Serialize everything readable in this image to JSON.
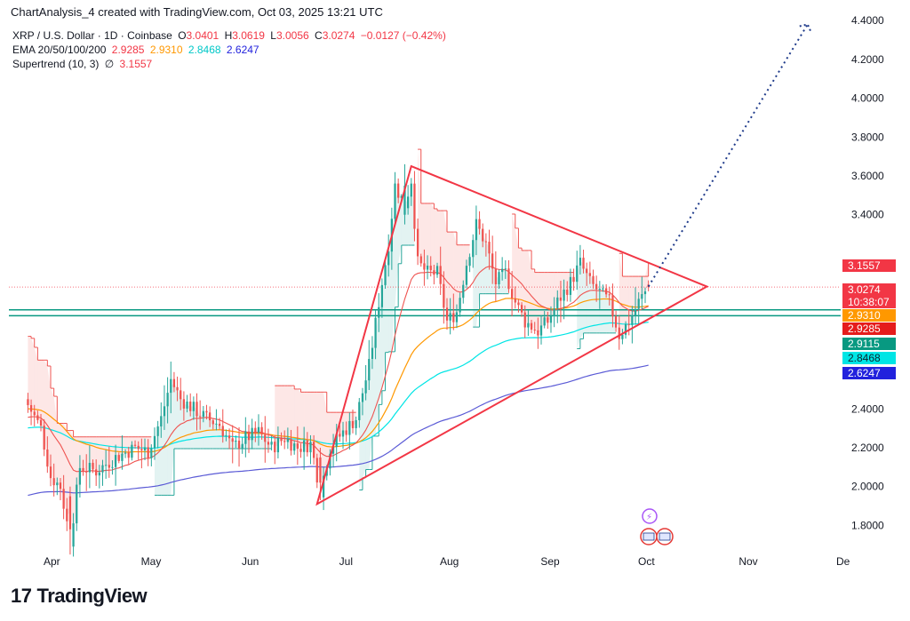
{
  "header": {
    "credit": "ChartAnalysis_4 created with TradingView.com, Oct 03, 2025 13:21 UTC"
  },
  "legend": {
    "symbol": "XRP / U.S. Dollar · 1D · Coinbase",
    "o_label": "O",
    "o_val": "3.0401",
    "h_label": "H",
    "h_val": "3.0619",
    "l_label": "L",
    "l_val": "3.0056",
    "c_label": "C",
    "c_val": "3.0274",
    "change": "−0.0127 (−0.42%)",
    "ema_label": "EMA 20/50/100/200",
    "ema20": "2.9285",
    "ema50": "2.9310",
    "ema100": "2.8468",
    "ema200": "2.6247",
    "st_label": "Supertrend (10, 3)",
    "st_icon": "∅",
    "st_val": "3.1557"
  },
  "logo": {
    "mark": "17",
    "text": "TradingView"
  },
  "colors": {
    "up": "#26a69a",
    "down": "#ef5350",
    "ema20": "#ef5350",
    "ema50": "#ff9800",
    "ema100": "#00e5e5",
    "ema200": "#5b5bd6",
    "triangle": "#f23645",
    "projection": "#1e3a8a",
    "support": "#089981"
  },
  "chart_data": {
    "type": "candlestick",
    "title": "XRP / U.S. Dollar · 1D · Coinbase",
    "y_axis": {
      "ticks": [
        1.8,
        2.0,
        2.2,
        2.4,
        2.6,
        2.8,
        3.0,
        3.2,
        3.4,
        3.6,
        3.8,
        4.0,
        4.2,
        4.4
      ],
      "range": [
        1.66,
        4.46
      ],
      "side": "right",
      "shown_ticks": [
        "1.8000",
        "2.0000",
        "2.2000",
        "2.4000",
        "3.4000",
        "3.6000",
        "3.8000",
        "4.0000",
        "4.2000",
        "4.4000"
      ]
    },
    "x_axis": {
      "ticks": [
        "Apr",
        "May",
        "Jun",
        "Jul",
        "Aug",
        "Sep",
        "Oct",
        "Nov",
        "De"
      ]
    },
    "price_labels": [
      {
        "value": "3.1557",
        "color": "#f23645",
        "price": 3.1557
      },
      {
        "value": "3.0274",
        "color": "#f23645",
        "price": 3.0274,
        "sub": "10:38:07"
      },
      {
        "value": "2.9310",
        "color": "#ff9800",
        "price": 2.931
      },
      {
        "value": "2.9285",
        "color": "#e51c1c",
        "price": 2.9285
      },
      {
        "value": "2.9115",
        "color": "#089981",
        "price": 2.9115
      },
      {
        "value": "2.8468",
        "color": "#00e5e5",
        "price": 2.8468
      },
      {
        "value": "2.6247",
        "color": "#2222dd",
        "price": 2.6247
      }
    ],
    "key_points": {
      "close": 3.0274,
      "ema20": 2.9285,
      "ema50": 2.931,
      "ema100": 2.8468,
      "ema200": 2.6247,
      "supertrend": 3.1557,
      "support_lines": [
        2.91,
        2.88
      ],
      "triangle": {
        "top": [
          3.65,
          "Jul 21"
        ],
        "bottom": [
          1.91,
          "Jun 22"
        ],
        "apex": [
          3.03,
          "Oct 20"
        ]
      },
      "projection_target": 4.38
    },
    "candles_ohlc_sample": [
      [
        2.45,
        2.6,
        2.3,
        2.35
      ],
      [
        2.35,
        2.4,
        2.0,
        2.05
      ],
      [
        2.05,
        2.1,
        1.65,
        1.8
      ],
      [
        1.8,
        2.15,
        1.76,
        2.1
      ],
      [
        2.1,
        2.2,
        2.05,
        2.08
      ],
      [
        2.08,
        2.3,
        2.06,
        2.25
      ],
      [
        2.25,
        2.35,
        2.15,
        2.18
      ],
      [
        2.18,
        2.2,
        2.1,
        2.15
      ],
      [
        2.15,
        2.5,
        2.14,
        2.4
      ],
      [
        2.4,
        2.6,
        2.3,
        2.35
      ],
      [
        2.35,
        2.4,
        2.2,
        2.25
      ],
      [
        2.25,
        2.3,
        2.15,
        2.2
      ],
      [
        2.2,
        2.35,
        2.1,
        2.3
      ],
      [
        2.3,
        2.32,
        2.1,
        2.15
      ],
      [
        2.15,
        2.22,
        2.05,
        2.18
      ],
      [
        2.18,
        2.25,
        2.1,
        2.22
      ],
      [
        2.22,
        2.3,
        2.12,
        2.16
      ],
      [
        2.16,
        2.2,
        1.9,
        2.0
      ],
      [
        2.0,
        2.25,
        1.95,
        2.2
      ],
      [
        2.2,
        2.3,
        2.15,
        2.28
      ],
      [
        2.28,
        2.45,
        2.25,
        2.4
      ],
      [
        2.4,
        2.8,
        2.38,
        2.75
      ],
      [
        2.75,
        3.1,
        2.7,
        3.05
      ],
      [
        3.05,
        3.65,
        3.0,
        3.55
      ],
      [
        3.55,
        3.66,
        3.3,
        3.45
      ],
      [
        3.45,
        3.5,
        3.05,
        3.1
      ],
      [
        3.1,
        3.2,
        2.98,
        3.15
      ],
      [
        3.15,
        3.25,
        2.9,
        2.95
      ],
      [
        2.95,
        3.1,
        2.7,
        2.78
      ],
      [
        2.78,
        3.0,
        2.75,
        2.95
      ],
      [
        2.95,
        3.3,
        2.9,
        3.25
      ],
      [
        3.25,
        3.4,
        3.1,
        3.15
      ],
      [
        3.15,
        3.25,
        2.95,
        3.0
      ],
      [
        3.0,
        3.1,
        2.85,
        3.05
      ],
      [
        3.05,
        3.15,
        2.9,
        2.92
      ],
      [
        2.92,
        3.0,
        2.8,
        2.85
      ],
      [
        2.85,
        2.95,
        2.7,
        2.78
      ],
      [
        2.78,
        2.9,
        2.72,
        2.85
      ],
      [
        2.85,
        3.05,
        2.82,
        3.0
      ],
      [
        3.0,
        3.18,
        2.98,
        3.1
      ],
      [
        3.1,
        3.15,
        2.95,
        2.98
      ],
      [
        2.98,
        3.05,
        2.88,
        2.95
      ],
      [
        2.95,
        3.0,
        2.85,
        2.9
      ],
      [
        2.9,
        2.95,
        2.7,
        2.75
      ],
      [
        2.75,
        2.9,
        2.7,
        2.85
      ],
      [
        2.85,
        3.0,
        2.82,
        2.95
      ],
      [
        2.95,
        3.06,
        2.9,
        3.03
      ]
    ]
  }
}
